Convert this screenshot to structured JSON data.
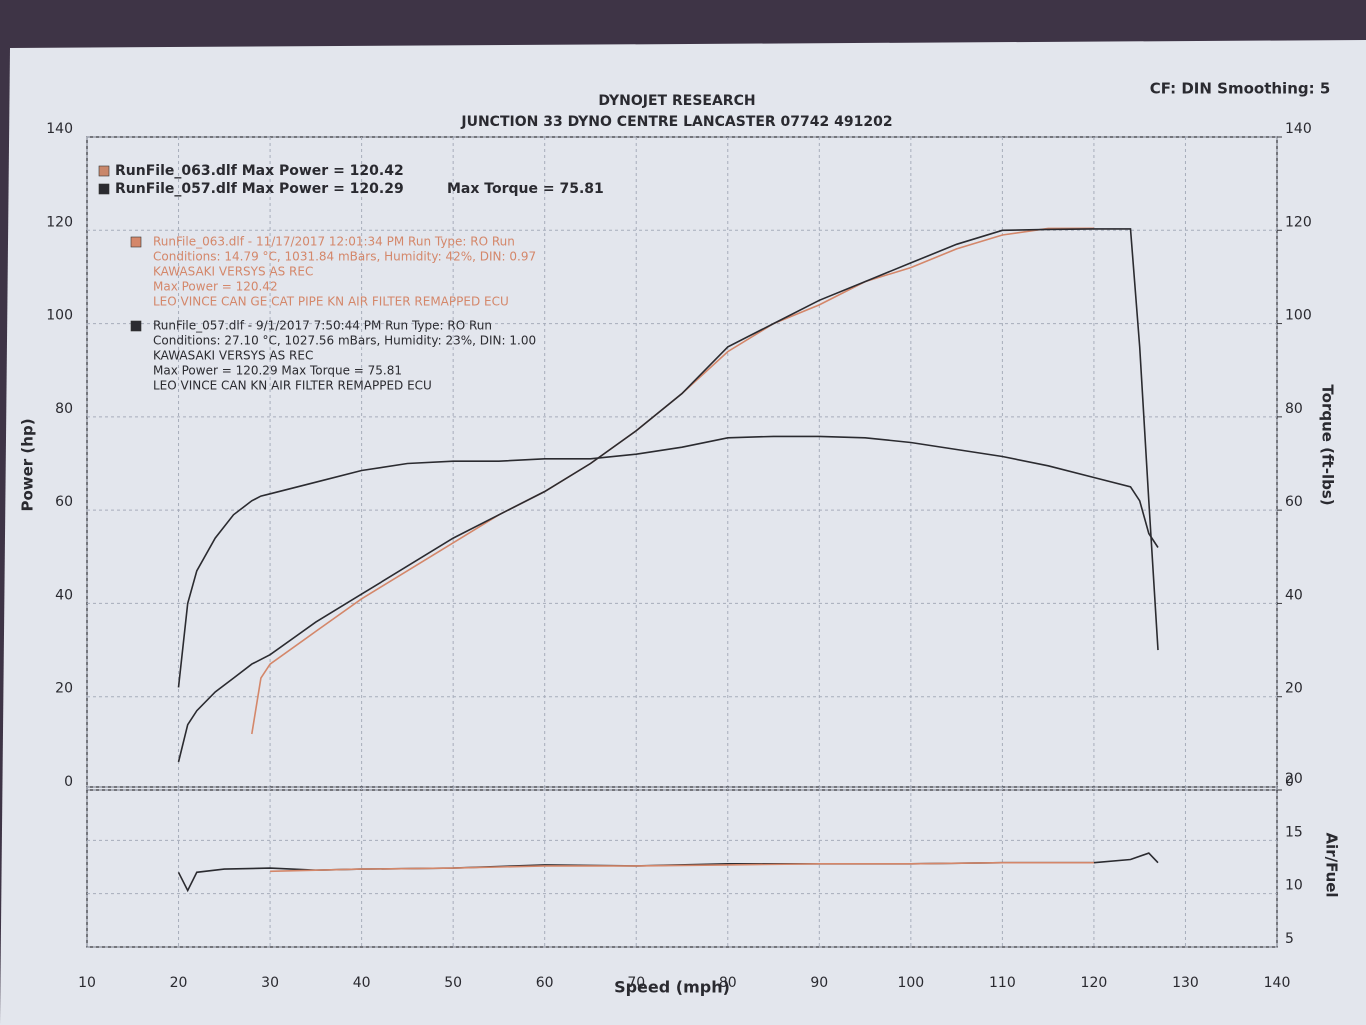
{
  "chart_data": [
    {
      "type": "line",
      "title": "DYNOJET RESEARCH",
      "subtitle": "JUNCTION 33 DYNO CENTRE LANCASTER 07742 491202",
      "annotation": "CF: DIN  Smoothing: 5",
      "ylabel": "Power (hp)",
      "y2label": "Torque (ft-lbs)",
      "legend_texts": [
        {
          "color": "#c9876b",
          "text": "RunFile_063.dlf Max Power = 120.42"
        },
        {
          "color": "#2b2b30",
          "text": "RunFile_057.dlf Max Power = 120.29",
          "extra": "Max Torque = 75.81"
        }
      ],
      "run_info": [
        {
          "color": "#d4876a",
          "lines": [
            "RunFile_063.dlf - 11/17/2017 12:01:34 PM  Run Type: RO  Run",
            "Conditions: 14.79 °C, 1031.84 mBars,  Humidity:  42%, DIN: 0.97",
            "KAWASAKI VERSYS AS REC",
            "Max Power = 120.42",
            "LEO VINCE CAN GE CAT PIPE KN AIR FILTER REMAPPED ECU"
          ]
        },
        {
          "color": "#2b2b30",
          "lines": [
            "RunFile_057.dlf - 9/1/2017 7:50:44 PM  Run Type: RO  Run",
            "Conditions: 27.10 °C, 1027.56 mBars,  Humidity:  23%, DIN: 1.00",
            "KAWASAKI VERSYS AS REC",
            "Max Power = 120.29  Max Torque = 75.81",
            "LEO VINCE CAN KN AIR FILTER REMAPPED ECU"
          ]
        }
      ],
      "x": [
        20,
        21,
        22,
        24,
        26,
        28,
        29,
        30,
        35,
        40,
        45,
        50,
        55,
        60,
        65,
        70,
        75,
        80,
        85,
        90,
        95,
        100,
        105,
        110,
        115,
        120,
        124,
        125,
        126,
        127
      ],
      "series": [
        {
          "color": "#d4876a",
          "values": [
            null,
            null,
            null,
            null,
            null,
            12,
            24,
            27,
            34,
            41,
            47,
            53,
            59,
            64,
            70,
            77,
            85,
            94,
            100,
            104,
            109,
            112,
            116,
            119,
            120.4,
            120.42,
            null,
            null,
            null,
            null
          ]
        },
        {
          "color": "#2b2b30",
          "values": [
            6,
            14,
            17,
            21,
            24,
            27,
            28,
            29,
            36,
            42,
            48,
            54,
            59,
            64,
            70,
            77,
            85,
            95,
            100,
            105,
            109,
            113,
            117,
            120,
            120.2,
            120.29,
            120.29,
            95,
            62,
            30
          ]
        },
        {
          "color": "#2b2b30",
          "axis": "y2",
          "values": [
            22,
            40,
            47,
            54,
            59,
            62,
            63,
            63.5,
            66,
            68.5,
            70,
            70.5,
            70.5,
            71,
            71,
            72,
            73.5,
            75.5,
            75.8,
            75.81,
            75.5,
            74.5,
            73,
            71.5,
            69.5,
            67,
            65,
            62,
            55,
            52
          ]
        }
      ],
      "xlim": [
        10,
        140
      ],
      "xticks": [
        10,
        20,
        30,
        40,
        50,
        60,
        70,
        80,
        90,
        100,
        110,
        120,
        130,
        140
      ],
      "ylim": [
        0,
        140
      ],
      "yticks": [
        0,
        20,
        40,
        60,
        80,
        100,
        120,
        140
      ],
      "y2lim": [
        0,
        140
      ],
      "y2ticks": [
        0,
        20,
        40,
        60,
        80,
        100,
        120,
        140
      ],
      "grid": true
    },
    {
      "type": "line",
      "xlabel": "Speed (mph)",
      "y2label": "Air/Fuel",
      "x": [
        20,
        21,
        22,
        25,
        30,
        35,
        40,
        50,
        60,
        70,
        80,
        90,
        100,
        110,
        120,
        124,
        126,
        127
      ],
      "series": [
        {
          "color": "#2b2b30",
          "axis": "y2",
          "values": [
            12,
            10.3,
            12,
            12.3,
            12.4,
            12.2,
            12.3,
            12.4,
            12.7,
            12.6,
            12.8,
            12.8,
            12.8,
            12.9,
            12.9,
            13.2,
            13.8,
            12.9
          ]
        },
        {
          "color": "#d4876a",
          "axis": "y2",
          "values": [
            null,
            null,
            null,
            null,
            12.1,
            12.2,
            12.3,
            12.4,
            12.6,
            12.6,
            12.7,
            12.8,
            12.8,
            12.9,
            12.9,
            null,
            null,
            null
          ]
        }
      ],
      "xlim": [
        10,
        140
      ],
      "xticks": [
        10,
        20,
        30,
        40,
        50,
        60,
        70,
        80,
        90,
        100,
        110,
        120,
        130,
        140
      ],
      "y2lim": [
        5,
        20
      ],
      "y2ticks": [
        5,
        10,
        15,
        20
      ],
      "grid": true
    }
  ]
}
